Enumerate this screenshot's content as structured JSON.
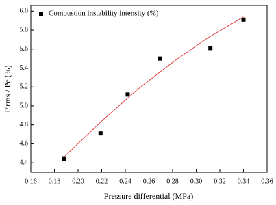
{
  "chart_data": {
    "type": "scatter",
    "x_label": "Pressure differential (MPa)",
    "y_label": "P'rms / Pc (%)",
    "xlim": [
      0.16,
      0.36
    ],
    "xticks": [
      0.16,
      0.18,
      {
        "value": 0.2,
        "label": "0.20"
      },
      0.22,
      0.24,
      0.26,
      0.28,
      {
        "value": 0.3,
        "label": "0.30"
      },
      0.32,
      0.34,
      0.36
    ],
    "ylim": [
      4.3,
      6.06
    ],
    "yticks": [
      4.4,
      4.6,
      4.8,
      {
        "value": 5,
        "label": "5.0"
      },
      5.2,
      5.4,
      5.6,
      5.8,
      {
        "value": 6,
        "label": "6.0"
      }
    ],
    "legend": "upper left",
    "series": [
      {
        "name": "Combustion instability intensity (%)",
        "type": "scatter",
        "color": "#000000",
        "x": [
          0.188,
          0.219,
          0.242,
          0.269,
          0.312,
          0.34
        ],
        "values": [
          4.44,
          4.71,
          5.12,
          5.5,
          5.61,
          5.91
        ]
      },
      {
        "type": "line",
        "color": "#e03c3c",
        "x": [
          0.188,
          0.22,
          0.25,
          0.28,
          0.31,
          0.34
        ],
        "values": [
          4.46,
          4.84,
          5.17,
          5.46,
          5.72,
          5.94
        ]
      }
    ]
  }
}
